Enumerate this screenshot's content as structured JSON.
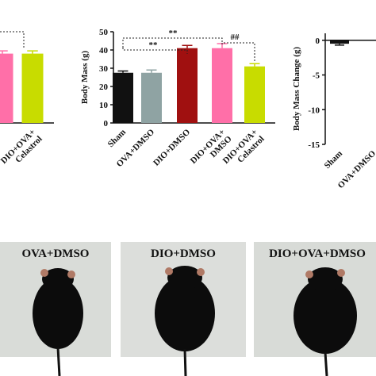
{
  "chart_data": [
    {
      "type": "bar",
      "categories": [
        null,
        "DIO+OVA+\nCelastrol"
      ],
      "values": [
        38,
        38
      ],
      "errors": [
        1.5,
        1.5
      ],
      "colors": [
        "#ff6fa8",
        "#c8dc00"
      ],
      "ylim": [
        0,
        50
      ]
    },
    {
      "type": "bar",
      "ylabel": "Body Mass (g)",
      "categories": [
        "Sham",
        "OVA+DMSO",
        "DIO+DMSO",
        "DIO+OVA+\nDMSO",
        "DIO+OVA+\nCelastrol"
      ],
      "values": [
        27.5,
        27.5,
        41,
        41,
        31
      ],
      "errors": [
        1,
        1.5,
        1.5,
        2.5,
        1.5
      ],
      "colors": [
        "#111111",
        "#8fa3a3",
        "#a01010",
        "#ff6fa8",
        "#c8dc00"
      ],
      "ylim": [
        0,
        50
      ],
      "yticks": [
        0,
        10,
        20,
        30,
        40,
        50
      ],
      "annotations": [
        "**",
        "**",
        "##"
      ]
    },
    {
      "type": "bar",
      "ylabel": "Body Mass Change (g)",
      "categories": [
        "Sham",
        "OVA+DMSO"
      ],
      "values": [
        -0.5,
        null
      ],
      "errors": [
        0.2,
        null
      ],
      "colors": [
        "#111111",
        "#111111"
      ],
      "ylim": [
        -15,
        1
      ],
      "yticks": [
        0,
        -5,
        -10,
        -15
      ]
    }
  ],
  "photos": [
    {
      "title": "OVA+DMSO"
    },
    {
      "title": "DIO+DMSO"
    },
    {
      "title": "DIO+OVA+DMSO"
    }
  ]
}
